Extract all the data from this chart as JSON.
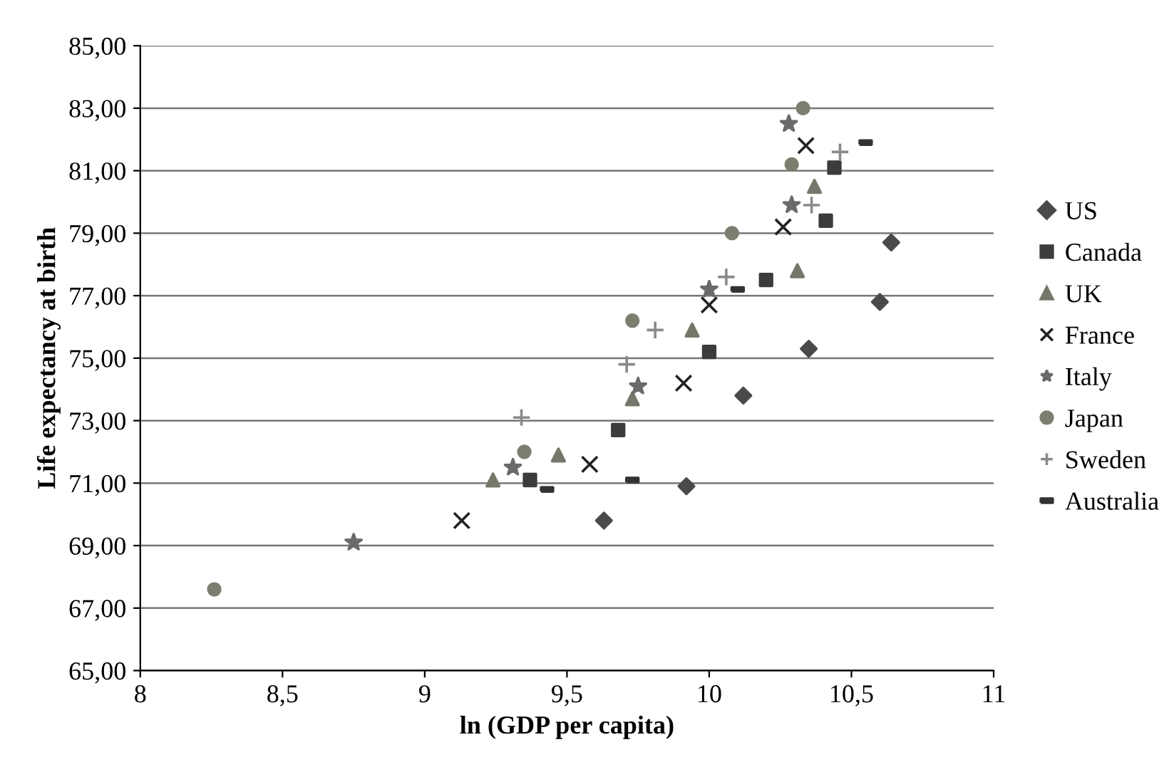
{
  "chart_data": {
    "type": "scatter",
    "xlabel": "ln (GDP per capita)",
    "ylabel": "Life expectancy at birth",
    "xlim": [
      8,
      11
    ],
    "ylim": [
      65,
      85
    ],
    "xticks": [
      8,
      {
        "value": 8.5,
        "label": "8,5"
      },
      9,
      {
        "value": 9.5,
        "label": "9,5"
      },
      10,
      {
        "value": 10.5,
        "label": "10,5"
      },
      11
    ],
    "yticks": [
      {
        "value": 65,
        "label": "65,00"
      },
      {
        "value": 67,
        "label": "67,00"
      },
      {
        "value": 69,
        "label": "69,00"
      },
      {
        "value": 71,
        "label": "71,00"
      },
      {
        "value": 73,
        "label": "73,00"
      },
      {
        "value": 75,
        "label": "75,00"
      },
      {
        "value": 77,
        "label": "77,00"
      },
      {
        "value": 79,
        "label": "79,00"
      },
      {
        "value": 81,
        "label": "81,00"
      },
      {
        "value": 83,
        "label": "83,00"
      },
      {
        "value": 85,
        "label": "85,00"
      }
    ],
    "grid": "y",
    "legend": "right",
    "series": [
      {
        "name": "US",
        "color": "#4a4a4a",
        "marker": "diamond",
        "x": [
          9.63,
          9.92,
          10.12,
          10.35,
          10.6,
          10.64
        ],
        "values": [
          69.8,
          70.9,
          73.8,
          75.3,
          76.8,
          78.7
        ]
      },
      {
        "name": "Canada",
        "color": "#3c3c3c",
        "marker": "square",
        "x": [
          9.37,
          9.68,
          10.0,
          10.2,
          10.41,
          10.44
        ],
        "values": [
          71.1,
          72.7,
          75.2,
          77.5,
          79.4,
          81.1
        ]
      },
      {
        "name": "UK",
        "color": "#76766a",
        "marker": "triangle",
        "x": [
          9.24,
          9.47,
          9.73,
          9.94,
          10.31,
          10.37
        ],
        "values": [
          71.1,
          71.9,
          73.7,
          75.9,
          77.8,
          80.5
        ]
      },
      {
        "name": "France",
        "color": "#222222",
        "marker": "cross",
        "x": [
          9.13,
          9.58,
          9.91,
          10.0,
          10.26,
          10.34
        ],
        "values": [
          69.8,
          71.6,
          74.2,
          76.7,
          79.2,
          81.8
        ]
      },
      {
        "name": "Italy",
        "color": "#6a6a6a",
        "marker": "star",
        "x": [
          8.75,
          9.31,
          9.75,
          10.0,
          10.29,
          10.28
        ],
        "values": [
          69.1,
          71.5,
          74.1,
          77.2,
          79.9,
          82.5
        ]
      },
      {
        "name": "Japan",
        "color": "#7e7e70",
        "marker": "circle",
        "x": [
          8.26,
          9.35,
          9.73,
          10.08,
          10.29,
          10.33
        ],
        "values": [
          67.6,
          72.0,
          76.2,
          79.0,
          81.2,
          83.0
        ]
      },
      {
        "name": "Sweden",
        "color": "#8a8a8a",
        "marker": "plus",
        "x": [
          9.34,
          9.71,
          9.81,
          10.06,
          10.36,
          10.46
        ],
        "values": [
          73.1,
          74.8,
          75.9,
          77.6,
          79.9,
          81.6
        ]
      },
      {
        "name": "Australia",
        "color": "#333333",
        "marker": "square",
        "x": [
          9.43,
          9.73,
          10.1,
          10.55
        ],
        "values": [
          70.8,
          71.1,
          77.2,
          81.9
        ]
      }
    ]
  }
}
